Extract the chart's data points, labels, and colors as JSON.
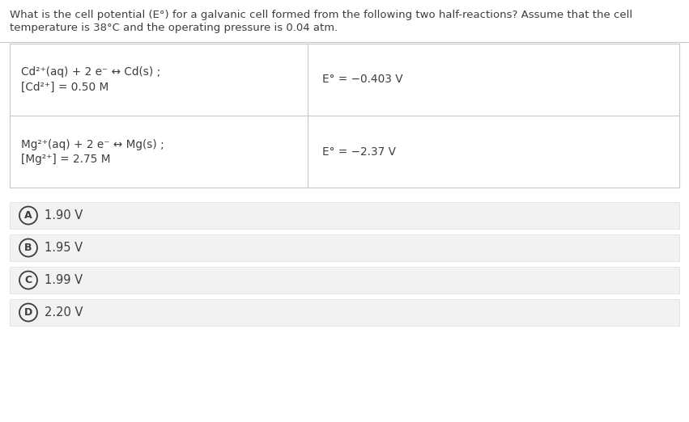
{
  "title_line1": "What is the cell potential (E°) for a galvanic cell formed from the following two half-reactions? Assume that the cell",
  "title_line2": "temperature is 38°C and the operating pressure is 0.04 atm.",
  "row1_left_line1": "Cd²⁺(aq) + 2 e⁻ ↔ Cd(s) ;",
  "row1_left_line2": "[Cd²⁺] = 0.50 M",
  "row1_right": "E° = −0.403 V",
  "row2_left_line1": "Mg²⁺(aq) + 2 e⁻ ↔ Mg(s) ;",
  "row2_left_line2": "[Mg²⁺] = 2.75 M",
  "row2_right": "E° = −2.37 V",
  "options": [
    {
      "label": "A",
      "text": "1.90 V"
    },
    {
      "label": "B",
      "text": "1.95 V"
    },
    {
      "label": "C",
      "text": "1.99 V"
    },
    {
      "label": "D",
      "text": "2.20 V"
    }
  ],
  "bg_color": "#ffffff",
  "text_color": "#3d3d3d",
  "table_border_color": "#c8c8c8",
  "table_bg": "#ffffff",
  "option_bg_color": "#f2f2f2",
  "option_border_color": "#dddddd",
  "font_size_title": 9.5,
  "font_size_table": 9.8,
  "font_size_options": 10.5,
  "font_size_circle": 9
}
